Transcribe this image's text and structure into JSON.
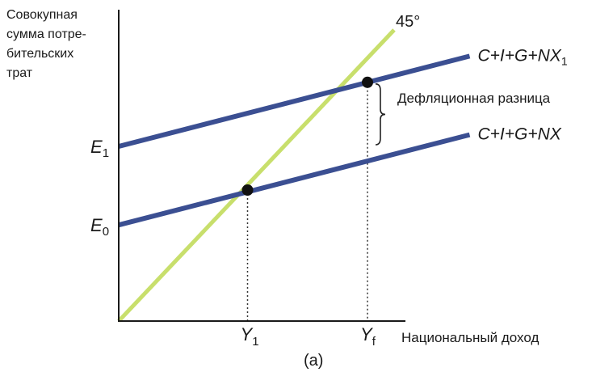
{
  "chart_data": {
    "type": "line",
    "title": "",
    "panel_label": "(a)",
    "ylabel": [
      "Совокупная",
      "сумма потре-",
      "бительских",
      "трат"
    ],
    "xlabel": "Национальный доход",
    "xlim": [
      0,
      100
    ],
    "ylim": [
      0,
      100
    ],
    "grid": false,
    "legend": "none",
    "series": [
      {
        "name": "45°",
        "key": "diagonal",
        "color": "#c8df6c",
        "x": [
          0,
          62
        ],
        "y": [
          0,
          100
        ]
      },
      {
        "name": "C+I+G+NX",
        "key": "lower",
        "label": {
          "main": "C+I+G+NX",
          "italic": [
            "C",
            "I",
            "G",
            "NX"
          ]
        },
        "color": "#3b4f92",
        "x": [
          0,
          79
        ],
        "y": [
          33,
          64
        ]
      },
      {
        "name": "C+I+G+NX1",
        "key": "upper",
        "label": {
          "main": "C+I+G+NX",
          "sub": "1"
        },
        "color": "#3b4f92",
        "x": [
          0,
          79
        ],
        "y": [
          60,
          91
        ]
      }
    ],
    "y_ticks": [
      {
        "main": "E",
        "sub": "0",
        "value": 33
      },
      {
        "main": "E",
        "sub": "1",
        "value": 60
      }
    ],
    "x_ticks": [
      {
        "main": "Y",
        "sub": "1",
        "value": 29
      },
      {
        "main": "Y",
        "sub": "f",
        "value": 56
      }
    ],
    "points": [
      {
        "key": "eq-lower",
        "x": 29,
        "y": 45
      },
      {
        "key": "eq-upper",
        "x": 56,
        "y": 82
      }
    ],
    "annotations": {
      "gap_label": "Дефляционная разница",
      "gap_x": 56,
      "gap_from": 82,
      "gap_to": 60
    }
  }
}
